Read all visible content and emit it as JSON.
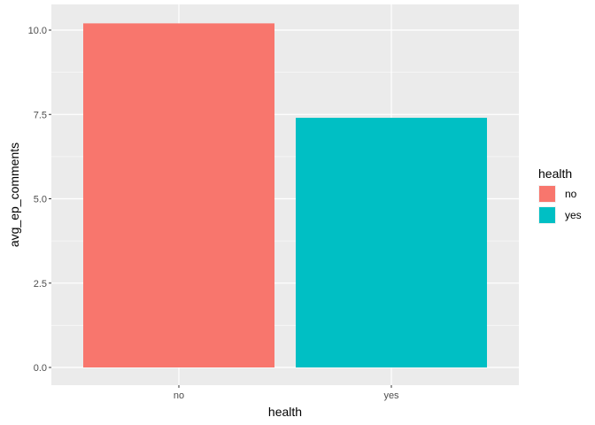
{
  "chart_data": {
    "type": "bar",
    "categories": [
      "no",
      "yes"
    ],
    "values": [
      10.2,
      7.4
    ],
    "xlabel": "health",
    "ylabel": "avg_ep_comments",
    "ylim": [
      0,
      10.2
    ],
    "yticks": [
      "0.0",
      "2.5",
      "5.0",
      "7.5",
      "10.0"
    ],
    "ytick_values": [
      0,
      2.5,
      5,
      7.5,
      10
    ],
    "colors": [
      "#F8766D",
      "#00BFC4"
    ],
    "panel_background": "#EBEBEB",
    "grid": true,
    "legend": {
      "title": "health",
      "position": "right",
      "entries": [
        "no",
        "yes"
      ]
    }
  }
}
